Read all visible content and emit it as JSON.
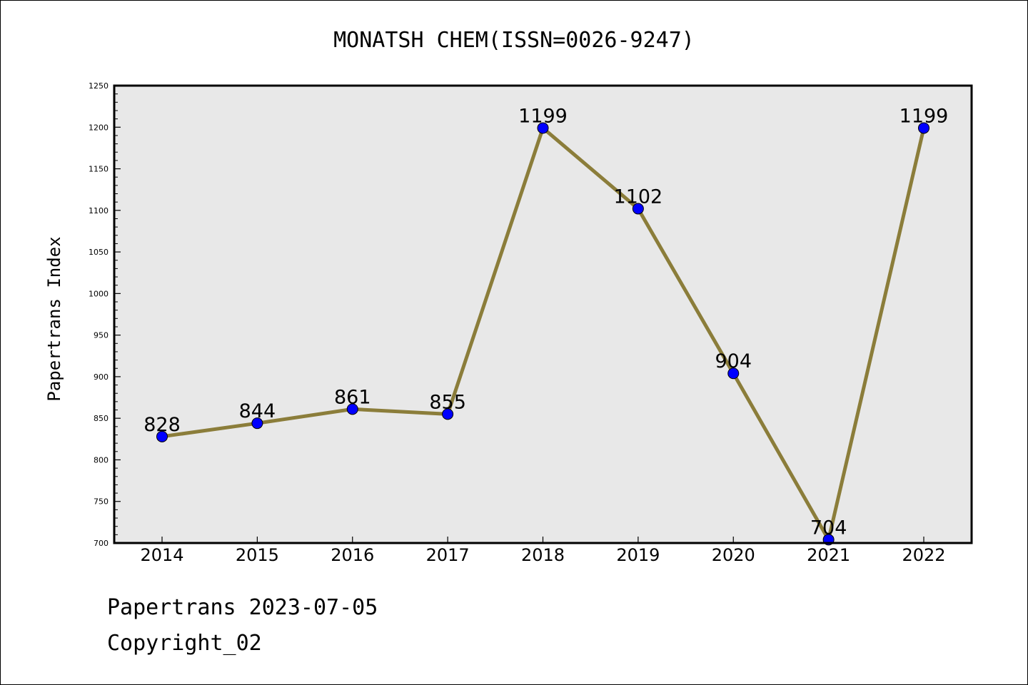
{
  "chart_data": {
    "type": "line",
    "title": "MONATSH CHEM(ISSN=0026-9247)",
    "xlabel": "",
    "ylabel": "Papertrans Index",
    "x": [
      "2014",
      "2015",
      "2016",
      "2017",
      "2018",
      "2019",
      "2020",
      "2021",
      "2022"
    ],
    "series": [
      {
        "values": [
          828,
          844,
          861,
          855,
          1199,
          1102,
          904,
          704,
          1199
        ]
      }
    ],
    "data_labels": [
      "828",
      "844",
      "861",
      "855",
      "1199",
      "1102",
      "904",
      "704",
      "1199"
    ],
    "ylim": [
      700,
      1250
    ],
    "yticks": [
      700,
      750,
      800,
      850,
      900,
      950,
      1000,
      1050,
      1100,
      1150,
      1200,
      1250
    ],
    "ytick_labels": [
      "700",
      "750",
      "800",
      "850",
      "900",
      "950",
      "1000",
      "1050",
      "1100",
      "1150",
      "1200",
      "1250"
    ],
    "grid": false,
    "line_color": "#8b7d3a",
    "marker_color": "#0000ff",
    "plot_background": "#e8e8e8"
  },
  "footer": {
    "line1": "Papertrans 2023-07-05",
    "line2": "Copyright_02"
  }
}
